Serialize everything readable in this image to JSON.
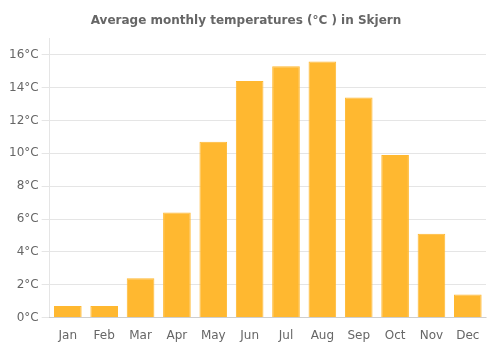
{
  "chart_data": {
    "type": "bar",
    "title": "Average monthly temperatures (°C ) in Skjern",
    "categories": [
      "Jan",
      "Feb",
      "Mar",
      "Apr",
      "May",
      "Jun",
      "Jul",
      "Aug",
      "Sep",
      "Oct",
      "Nov",
      "Dec"
    ],
    "values": [
      0.7,
      0.7,
      2.4,
      6.4,
      10.7,
      14.4,
      15.3,
      15.6,
      13.4,
      9.9,
      5.1,
      1.4
    ],
    "color": "#FFB830",
    "ylim": [
      0,
      17
    ],
    "yticks": [
      {
        "value": 0,
        "label": "0°C"
      },
      {
        "value": 2,
        "label": "2°C"
      },
      {
        "value": 4,
        "label": "4°C"
      },
      {
        "value": 6,
        "label": "6°C"
      },
      {
        "value": 8,
        "label": "8°C"
      },
      {
        "value": 10,
        "label": "10°C"
      },
      {
        "value": 12,
        "label": "12°C"
      },
      {
        "value": 14,
        "label": "14°C"
      },
      {
        "value": 16,
        "label": "16°C"
      }
    ],
    "grid": true
  }
}
